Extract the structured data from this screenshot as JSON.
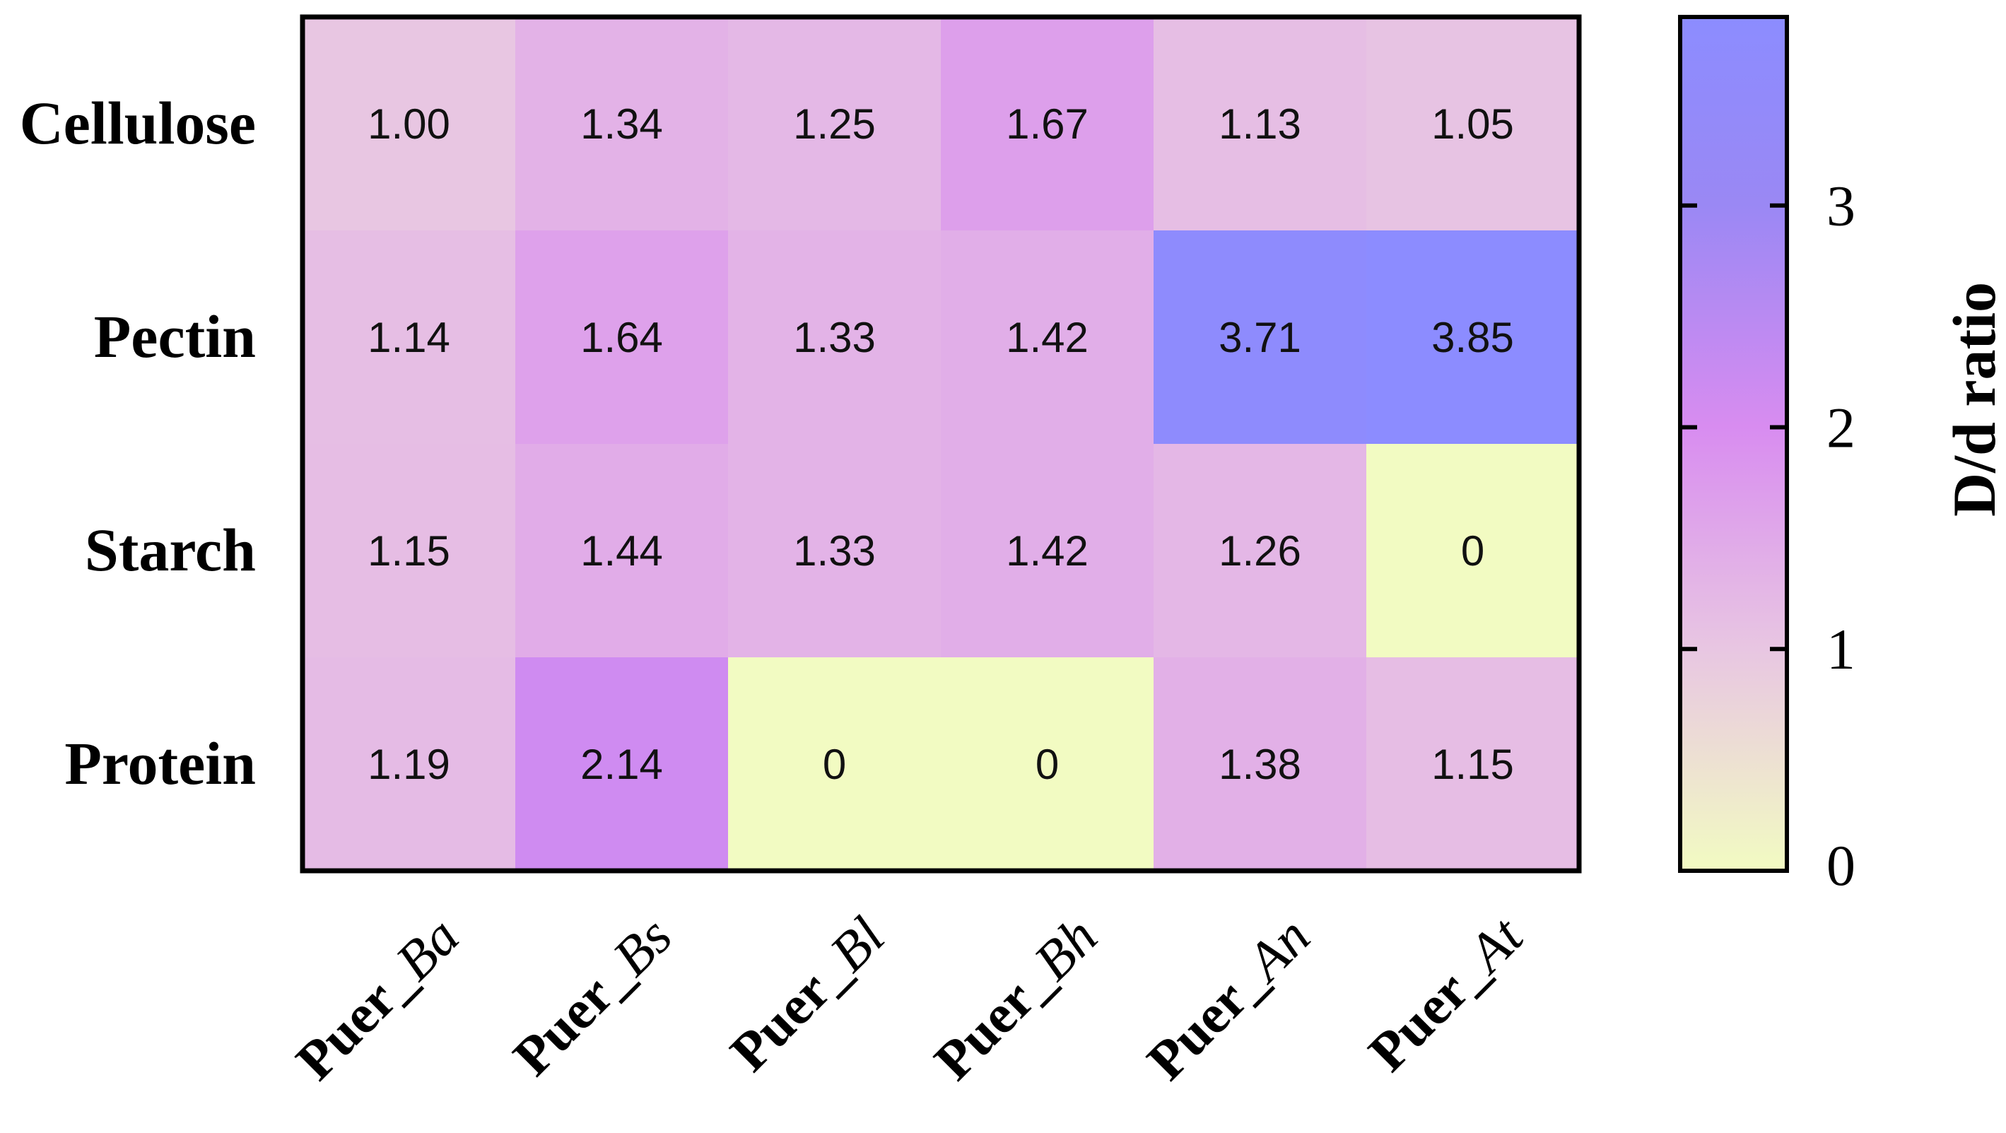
{
  "chart_data": {
    "type": "heatmap",
    "rows": [
      "Cellulose",
      "Pectin",
      "Starch",
      "Protein"
    ],
    "columns": [
      {
        "prefix": "Puer_",
        "suffix": "Ba"
      },
      {
        "prefix": "Puer_",
        "suffix": "Bs"
      },
      {
        "prefix": "Puer_",
        "suffix": "Bl"
      },
      {
        "prefix": "Puer_",
        "suffix": "Bh"
      },
      {
        "prefix": "Puer_",
        "suffix": "An"
      },
      {
        "prefix": "Puer_",
        "suffix": "At"
      }
    ],
    "values": [
      [
        1.0,
        1.34,
        1.25,
        1.67,
        1.13,
        1.05
      ],
      [
        1.14,
        1.64,
        1.33,
        1.42,
        3.71,
        3.85
      ],
      [
        1.15,
        1.44,
        1.33,
        1.42,
        1.26,
        0
      ],
      [
        1.19,
        2.14,
        0,
        0,
        1.38,
        1.15
      ]
    ],
    "cell_labels": [
      [
        "1.00",
        "1.34",
        "1.25",
        "1.67",
        "1.13",
        "1.05"
      ],
      [
        "1.14",
        "1.64",
        "1.33",
        "1.42",
        "3.71",
        "3.85"
      ],
      [
        "1.15",
        "1.44",
        "1.33",
        "1.42",
        "1.26",
        "0"
      ],
      [
        "1.19",
        "2.14",
        "0",
        "0",
        "1.38",
        "1.15"
      ]
    ],
    "colorbar": {
      "title": "D/d ratio",
      "range": [
        0,
        3.85
      ],
      "ticks": [
        "0",
        "1",
        "2",
        "3"
      ],
      "tick_values": [
        0,
        1,
        2,
        3
      ],
      "colors": {
        "0": "#f2fbc2",
        "1": "#e8c6e2",
        "2": "#d88cf0",
        "3": "#9a88f4",
        "3.85": "#8c8cff"
      }
    },
    "legend_placement": "right",
    "grid": false
  }
}
